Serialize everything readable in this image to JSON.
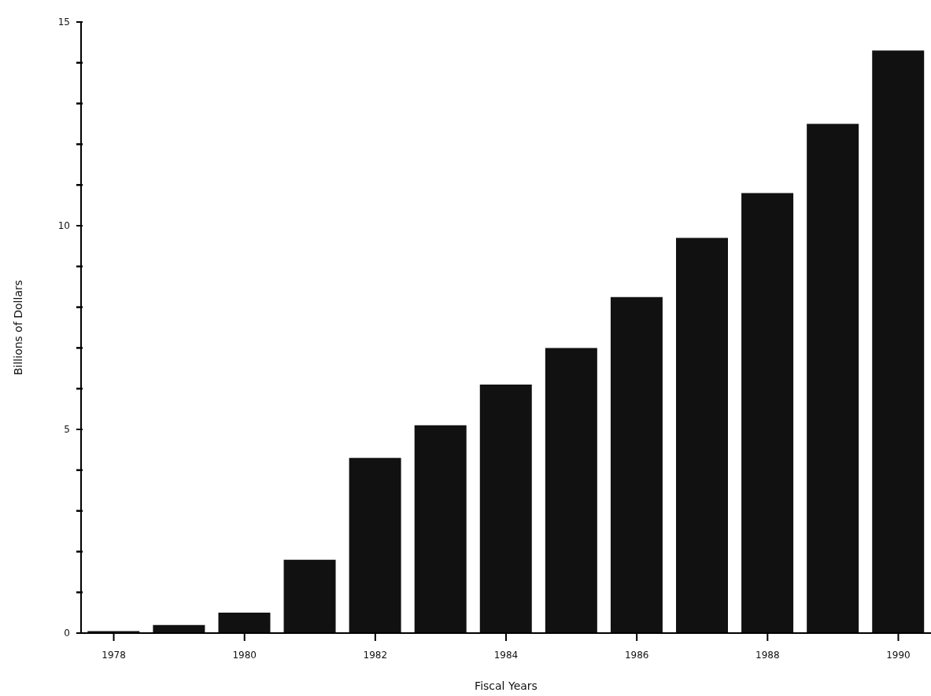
{
  "chart_data": {
    "type": "bar",
    "xlabel": "Fiscal Years",
    "ylabel": "Billions of Dollars",
    "categories": [
      "1978",
      null,
      "1980",
      null,
      "1982",
      null,
      "1984",
      null,
      "1986",
      null,
      "1988",
      null,
      "1990"
    ],
    "values": [
      0.05,
      0.2,
      0.5,
      1.8,
      4.3,
      5.1,
      6.1,
      7.0,
      8.25,
      9.7,
      10.8,
      12.5,
      14.3
    ],
    "color": "#111111",
    "ylim": [
      0,
      15
    ],
    "yticks": [
      0,
      {
        "value": 1,
        "label": null
      },
      {
        "value": 2,
        "label": null
      },
      {
        "value": 3,
        "label": null
      },
      {
        "value": 4,
        "label": null
      },
      5,
      {
        "value": 6,
        "label": null
      },
      {
        "value": 7,
        "label": null
      },
      {
        "value": 8,
        "label": null
      },
      {
        "value": 9,
        "label": null
      },
      10,
      {
        "value": 11,
        "label": null
      },
      {
        "value": 12,
        "label": null
      },
      {
        "value": 13,
        "label": null
      },
      {
        "value": 14,
        "label": null
      },
      15
    ],
    "grid": false,
    "legend": false
  }
}
